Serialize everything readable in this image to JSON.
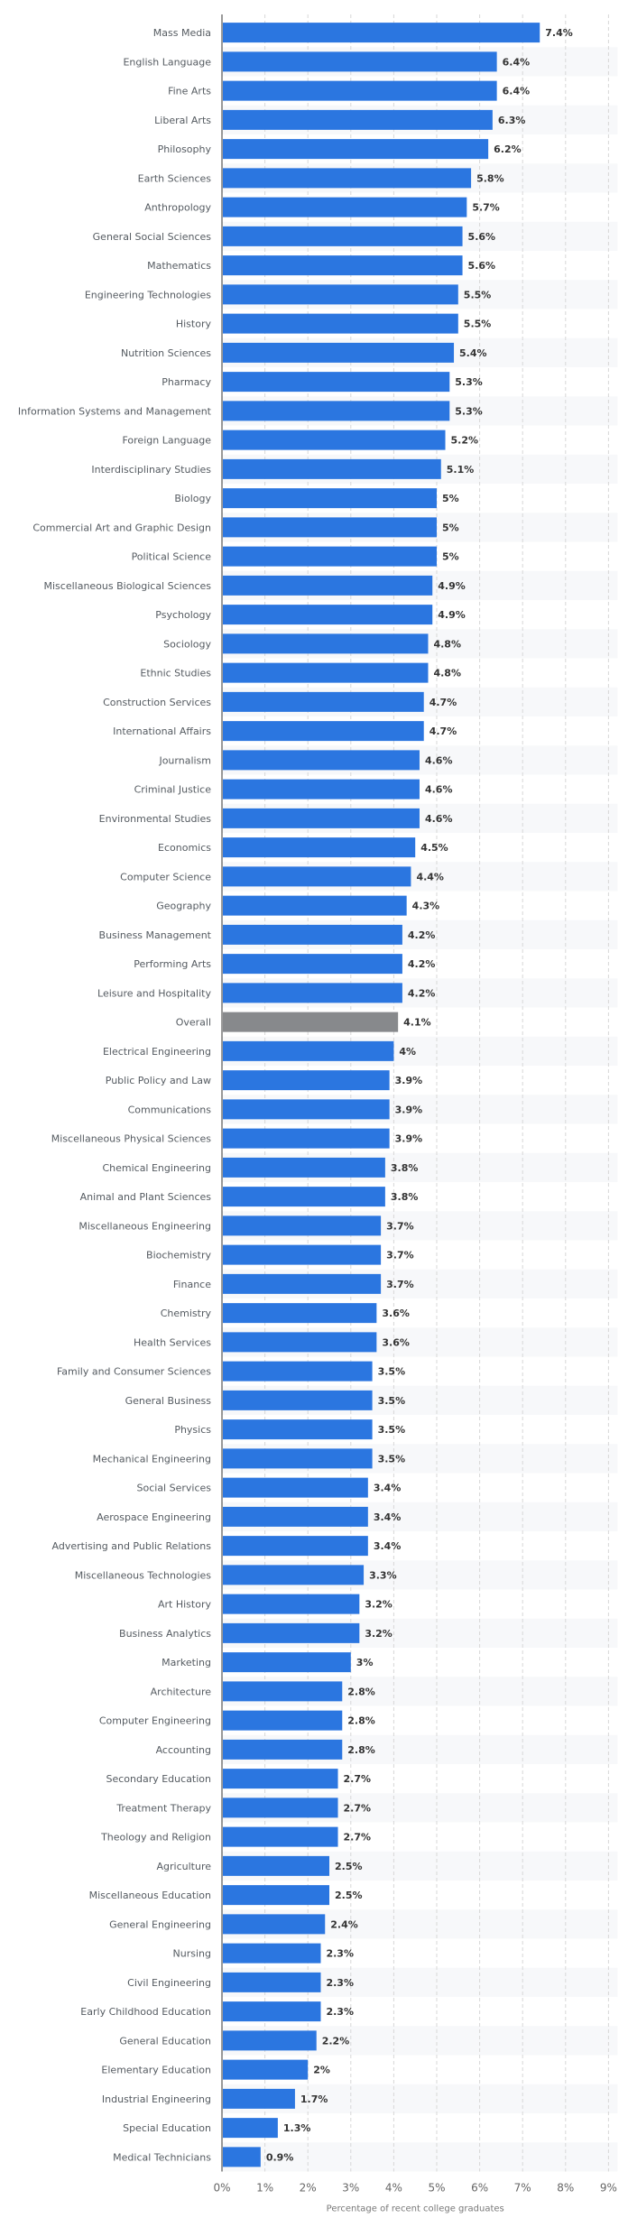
{
  "chart_data": {
    "type": "bar",
    "orientation": "horizontal",
    "title": "",
    "xlabel": "Percentage of recent college graduates",
    "ylabel": "",
    "xlim": [
      0,
      9
    ],
    "x_ticks": [
      0,
      1,
      2,
      3,
      4,
      5,
      6,
      7,
      8,
      9
    ],
    "x_tick_labels": [
      "0%",
      "1%",
      "2%",
      "3%",
      "4%",
      "5%",
      "6%",
      "7%",
      "8%",
      "9%"
    ],
    "grid": true,
    "colors": {
      "bar": "#2b76e0",
      "highlight": "#87898c",
      "grid": "#d7d7d7",
      "band": "#f7f8fa",
      "axis": "#333333"
    },
    "highlight_category": "Overall",
    "categories": [
      "Mass Media",
      "English Language",
      "Fine Arts",
      "Liberal Arts",
      "Philosophy",
      "Earth Sciences",
      "Anthropology",
      "General Social Sciences",
      "Mathematics",
      "Engineering Technologies",
      "History",
      "Nutrition Sciences",
      "Pharmacy",
      "Information Systems and Management",
      "Foreign Language",
      "Interdisciplinary Studies",
      "Biology",
      "Commercial Art and Graphic Design",
      "Political Science",
      "Miscellaneous Biological Sciences",
      "Psychology",
      "Sociology",
      "Ethnic Studies",
      "Construction Services",
      "International Affairs",
      "Journalism",
      "Criminal Justice",
      "Environmental Studies",
      "Economics",
      "Computer Science",
      "Geography",
      "Business Management",
      "Performing Arts",
      "Leisure and Hospitality",
      "Overall",
      "Electrical Engineering",
      "Public Policy and Law",
      "Communications",
      "Miscellaneous Physical Sciences",
      "Chemical Engineering",
      "Animal and Plant Sciences",
      "Miscellaneous Engineering",
      "Biochemistry",
      "Finance",
      "Chemistry",
      "Health Services",
      "Family and Consumer Sciences",
      "General Business",
      "Physics",
      "Mechanical Engineering",
      "Social Services",
      "Aerospace Engineering",
      "Advertising and Public Relations",
      "Miscellaneous Technologies",
      "Art History",
      "Business Analytics",
      "Marketing",
      "Architecture",
      "Computer Engineering",
      "Accounting",
      "Secondary Education",
      "Treatment Therapy",
      "Theology and Religion",
      "Agriculture",
      "Miscellaneous Education",
      "General Engineering",
      "Nursing",
      "Civil Engineering",
      "Early Childhood Education",
      "General Education",
      "Elementary Education",
      "Industrial Engineering",
      "Special Education",
      "Medical Technicians"
    ],
    "values": [
      7.4,
      6.4,
      6.4,
      6.3,
      6.2,
      5.8,
      5.7,
      5.6,
      5.6,
      5.5,
      5.5,
      5.4,
      5.3,
      5.3,
      5.2,
      5.1,
      5,
      5,
      5,
      4.9,
      4.9,
      4.8,
      4.8,
      4.7,
      4.7,
      4.6,
      4.6,
      4.6,
      4.5,
      4.4,
      4.3,
      4.2,
      4.2,
      4.2,
      4.1,
      4,
      3.9,
      3.9,
      3.9,
      3.8,
      3.8,
      3.7,
      3.7,
      3.7,
      3.6,
      3.6,
      3.5,
      3.5,
      3.5,
      3.5,
      3.4,
      3.4,
      3.4,
      3.3,
      3.2,
      3.2,
      3,
      2.8,
      2.8,
      2.8,
      2.7,
      2.7,
      2.7,
      2.5,
      2.5,
      2.4,
      2.3,
      2.3,
      2.3,
      2.2,
      2,
      1.7,
      1.3,
      0.9
    ],
    "value_labels": [
      "7.4%",
      "6.4%",
      "6.4%",
      "6.3%",
      "6.2%",
      "5.8%",
      "5.7%",
      "5.6%",
      "5.6%",
      "5.5%",
      "5.5%",
      "5.4%",
      "5.3%",
      "5.3%",
      "5.2%",
      "5.1%",
      "5%",
      "5%",
      "5%",
      "4.9%",
      "4.9%",
      "4.8%",
      "4.8%",
      "4.7%",
      "4.7%",
      "4.6%",
      "4.6%",
      "4.6%",
      "4.5%",
      "4.4%",
      "4.3%",
      "4.2%",
      "4.2%",
      "4.2%",
      "4.1%",
      "4%",
      "3.9%",
      "3.9%",
      "3.9%",
      "3.8%",
      "3.8%",
      "3.7%",
      "3.7%",
      "3.7%",
      "3.6%",
      "3.6%",
      "3.5%",
      "3.5%",
      "3.5%",
      "3.5%",
      "3.4%",
      "3.4%",
      "3.4%",
      "3.3%",
      "3.2%",
      "3.2%",
      "3%",
      "2.8%",
      "2.8%",
      "2.8%",
      "2.7%",
      "2.7%",
      "2.7%",
      "2.5%",
      "2.5%",
      "2.4%",
      "2.3%",
      "2.3%",
      "2.3%",
      "2.2%",
      "2%",
      "1.7%",
      "1.3%",
      "0.9%"
    ]
  }
}
